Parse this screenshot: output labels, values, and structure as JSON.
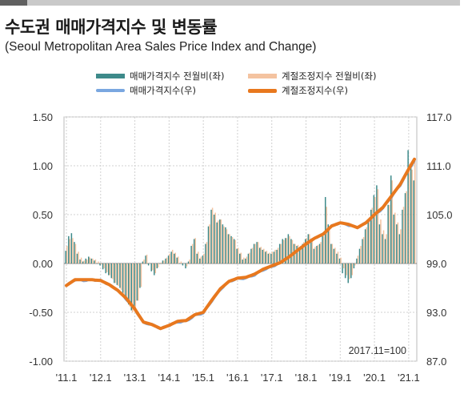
{
  "title": "수도권 매매가격지수 및 변동률",
  "subtitle": "(Seoul Metropolitan Area Sales Price Index and Change)",
  "note": "2017.11=100",
  "colors": {
    "sales_change": "#3d8a8a",
    "adjusted_change": "#f4c3a0",
    "sales_index": "#7aa7e0",
    "adjusted_index": "#e8781e",
    "grid": "#d0d0d0",
    "zero_line": "#808080",
    "plot_border": "#bbbbbb"
  },
  "chart_data": {
    "type": "bar+line",
    "left_axis": {
      "min": -1.0,
      "max": 1.5,
      "ticks": [
        "1.50",
        "1.00",
        "0.50",
        "0.00",
        "-0.50",
        "-1.00"
      ]
    },
    "right_axis": {
      "min": 87.0,
      "max": 117.0,
      "ticks": [
        "117.0",
        "111.0",
        "105.0",
        "99.0",
        "93.0",
        "87.0"
      ]
    },
    "x_ticks": [
      "'11.1",
      "'12.1",
      "'13.1",
      "'14.1",
      "'15.1",
      "'16.1",
      "'17.1",
      "'18.1",
      "'19.1",
      "'20.1",
      "'21.1"
    ],
    "x_start": "2011-01",
    "grid": true,
    "legend_position": "top",
    "series": [
      {
        "name": "매매가격지수 전월비(좌)",
        "type": "bar",
        "axis": "left",
        "color_key": "sales_change",
        "values": [
          0.13,
          0.28,
          0.31,
          0.22,
          0.1,
          0.04,
          0.02,
          0.05,
          0.07,
          0.05,
          0.03,
          0.0,
          -0.02,
          -0.06,
          -0.1,
          -0.12,
          -0.15,
          -0.2,
          -0.22,
          -0.25,
          -0.3,
          -0.35,
          -0.42,
          -0.48,
          -0.45,
          -0.38,
          -0.25,
          0.02,
          0.08,
          -0.02,
          -0.08,
          -0.12,
          -0.05,
          0.0,
          0.03,
          0.05,
          0.08,
          0.12,
          0.1,
          0.06,
          0.0,
          -0.02,
          -0.05,
          0.02,
          0.18,
          0.25,
          0.1,
          0.05,
          0.08,
          0.2,
          0.38,
          0.55,
          0.5,
          0.42,
          0.45,
          0.4,
          0.37,
          0.3,
          0.28,
          0.25,
          0.15,
          0.1,
          0.04,
          0.05,
          0.1,
          0.15,
          0.2,
          0.22,
          0.16,
          0.14,
          0.12,
          0.1,
          0.1,
          0.12,
          0.14,
          0.2,
          0.25,
          0.26,
          0.3,
          0.25,
          0.2,
          0.18,
          0.16,
          0.2,
          0.25,
          0.3,
          0.22,
          0.15,
          0.18,
          0.2,
          0.28,
          0.68,
          0.4,
          0.2,
          0.15,
          0.1,
          0.05,
          -0.1,
          -0.15,
          -0.2,
          -0.15,
          -0.05,
          0.05,
          0.15,
          0.25,
          0.35,
          0.45,
          0.55,
          0.7,
          0.8,
          0.4,
          0.3,
          0.25,
          0.6,
          0.9,
          0.5,
          0.4,
          0.3,
          0.55,
          0.72,
          1.16,
          0.98,
          0.85
        ]
      },
      {
        "name": "계절조정지수 전월비(좌)",
        "type": "bar",
        "axis": "left",
        "color_key": "adjusted_change",
        "values": [
          0.18,
          0.25,
          0.26,
          0.2,
          0.12,
          0.06,
          0.03,
          0.04,
          0.06,
          0.05,
          0.04,
          0.02,
          -0.01,
          -0.05,
          -0.09,
          -0.12,
          -0.16,
          -0.2,
          -0.23,
          -0.27,
          -0.32,
          -0.38,
          -0.44,
          -0.5,
          -0.46,
          -0.38,
          -0.24,
          0.04,
          0.09,
          0.0,
          -0.07,
          -0.1,
          -0.04,
          0.01,
          0.03,
          0.06,
          0.1,
          0.14,
          0.11,
          0.07,
          0.02,
          0.0,
          -0.03,
          0.04,
          0.2,
          0.26,
          0.12,
          0.07,
          0.1,
          0.22,
          0.4,
          0.57,
          0.52,
          0.44,
          0.45,
          0.38,
          0.35,
          0.3,
          0.27,
          0.24,
          0.16,
          0.11,
          0.06,
          0.07,
          0.11,
          0.16,
          0.2,
          0.22,
          0.17,
          0.15,
          0.13,
          0.11,
          0.12,
          0.14,
          0.16,
          0.2,
          0.24,
          0.26,
          0.28,
          0.24,
          0.2,
          0.19,
          0.18,
          0.22,
          0.26,
          0.3,
          0.23,
          0.17,
          0.19,
          0.22,
          0.28,
          0.58,
          0.36,
          0.2,
          0.16,
          0.12,
          0.06,
          -0.05,
          -0.12,
          -0.16,
          -0.12,
          -0.02,
          0.08,
          0.18,
          0.27,
          0.37,
          0.47,
          0.57,
          0.68,
          0.76,
          0.45,
          0.34,
          0.3,
          0.6,
          0.85,
          0.52,
          0.42,
          0.35,
          0.58,
          0.74,
          1.02,
          0.96,
          1.05
        ]
      },
      {
        "name": "매매가격지수(우)",
        "type": "line",
        "axis": "right",
        "color_key": "sales_index",
        "anchors": [
          [
            "2011-01",
            96.3
          ],
          [
            "2011-04",
            97.0
          ],
          [
            "2011-07",
            96.9
          ],
          [
            "2011-10",
            97.0
          ],
          [
            "2012-01",
            96.9
          ],
          [
            "2012-04",
            96.4
          ],
          [
            "2012-07",
            95.7
          ],
          [
            "2012-10",
            94.6
          ],
          [
            "2013-01",
            93.4
          ],
          [
            "2013-04",
            91.7
          ],
          [
            "2013-07",
            91.5
          ],
          [
            "2013-10",
            91.0
          ],
          [
            "2014-01",
            91.4
          ],
          [
            "2014-04",
            91.8
          ],
          [
            "2014-07",
            91.9
          ],
          [
            "2014-10",
            92.6
          ],
          [
            "2015-01",
            92.9
          ],
          [
            "2015-04",
            94.4
          ],
          [
            "2015-07",
            95.8
          ],
          [
            "2015-10",
            96.8
          ],
          [
            "2016-01",
            97.1
          ],
          [
            "2016-04",
            97.2
          ],
          [
            "2016-07",
            97.6
          ],
          [
            "2016-10",
            98.2
          ],
          [
            "2017-01",
            98.6
          ],
          [
            "2017-04",
            99.1
          ],
          [
            "2017-07",
            99.8
          ],
          [
            "2017-10",
            100.6
          ],
          [
            "2018-01",
            101.4
          ],
          [
            "2018-04",
            102.1
          ],
          [
            "2018-07",
            102.6
          ],
          [
            "2018-10",
            103.6
          ],
          [
            "2019-01",
            104.0
          ],
          [
            "2019-04",
            103.7
          ],
          [
            "2019-07",
            103.4
          ],
          [
            "2019-10",
            104.0
          ],
          [
            "2020-01",
            104.9
          ],
          [
            "2020-04",
            105.8
          ],
          [
            "2020-07",
            107.2
          ],
          [
            "2020-10",
            108.6
          ],
          [
            "2021-01",
            110.5
          ],
          [
            "2021-03",
            111.6
          ]
        ]
      },
      {
        "name": "계절조정지수(우)",
        "type": "line",
        "axis": "right",
        "color_key": "adjusted_index",
        "anchors": [
          [
            "2011-01",
            96.3
          ],
          [
            "2011-04",
            97.0
          ],
          [
            "2011-07",
            97.0
          ],
          [
            "2011-10",
            97.0
          ],
          [
            "2012-01",
            96.9
          ],
          [
            "2012-04",
            96.4
          ],
          [
            "2012-07",
            95.7
          ],
          [
            "2012-10",
            94.7
          ],
          [
            "2013-01",
            93.4
          ],
          [
            "2013-04",
            91.8
          ],
          [
            "2013-07",
            91.5
          ],
          [
            "2013-10",
            91.0
          ],
          [
            "2014-01",
            91.4
          ],
          [
            "2014-04",
            91.9
          ],
          [
            "2014-07",
            92.0
          ],
          [
            "2014-10",
            92.7
          ],
          [
            "2015-01",
            93.0
          ],
          [
            "2015-04",
            94.5
          ],
          [
            "2015-07",
            95.9
          ],
          [
            "2015-10",
            96.8
          ],
          [
            "2016-01",
            97.2
          ],
          [
            "2016-04",
            97.3
          ],
          [
            "2016-07",
            97.7
          ],
          [
            "2016-10",
            98.3
          ],
          [
            "2017-01",
            98.7
          ],
          [
            "2017-04",
            99.1
          ],
          [
            "2017-07",
            99.8
          ],
          [
            "2017-10",
            100.6
          ],
          [
            "2018-01",
            101.4
          ],
          [
            "2018-04",
            102.1
          ],
          [
            "2018-07",
            102.6
          ],
          [
            "2018-10",
            103.6
          ],
          [
            "2019-01",
            104.0
          ],
          [
            "2019-04",
            103.8
          ],
          [
            "2019-07",
            103.4
          ],
          [
            "2019-10",
            104.0
          ],
          [
            "2020-01",
            105.0
          ],
          [
            "2020-04",
            105.9
          ],
          [
            "2020-07",
            107.3
          ],
          [
            "2020-10",
            108.7
          ],
          [
            "2021-01",
            110.6
          ],
          [
            "2021-03",
            111.8
          ]
        ]
      }
    ]
  }
}
